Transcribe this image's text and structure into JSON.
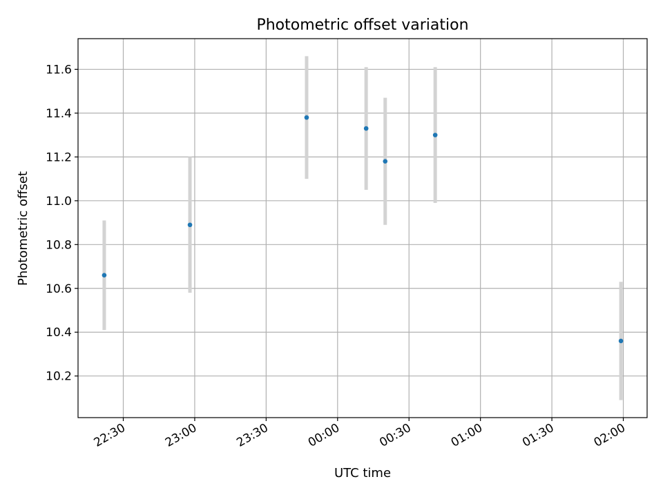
{
  "chart_data": {
    "type": "scatter",
    "title": "Photometric offset variation",
    "xlabel": "UTC time",
    "ylabel": "Photometric offset",
    "x_unit": "UTC time (hh:mm)",
    "xlim": [
      "22:11",
      "02:10"
    ],
    "ylim": [
      10.01,
      11.74
    ],
    "grid": true,
    "x_ticks": [
      "22:30",
      "23:00",
      "23:30",
      "00:00",
      "00:30",
      "01:00",
      "01:30",
      "02:00"
    ],
    "y_ticks": [
      "10.2",
      "10.4",
      "10.6",
      "10.8",
      "11.0",
      "11.2",
      "11.4",
      "11.6"
    ],
    "marker_color": "#1f77b4",
    "errorbar_color": "#d3d3d3",
    "points": [
      {
        "x": "22:22",
        "y": 10.66,
        "err": 0.25
      },
      {
        "x": "22:58",
        "y": 10.89,
        "err": 0.31
      },
      {
        "x": "23:47",
        "y": 11.38,
        "err": 0.28
      },
      {
        "x": "00:12",
        "y": 11.33,
        "err": 0.28
      },
      {
        "x": "00:20",
        "y": 11.18,
        "err": 0.29
      },
      {
        "x": "00:41",
        "y": 11.3,
        "err": 0.31
      },
      {
        "x": "01:59",
        "y": 10.36,
        "err": 0.27
      }
    ]
  }
}
